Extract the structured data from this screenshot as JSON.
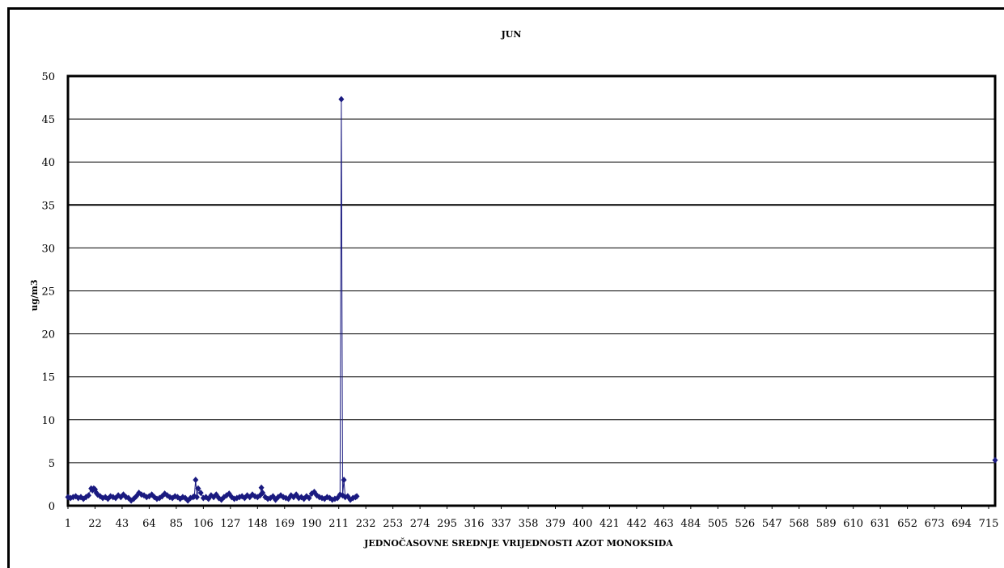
{
  "chart_data": {
    "type": "line",
    "title": "JUN",
    "xlabel": "JEDNOČASOVNE SREDNJE VRIJEDNOSTI AZOT MONOKSIDA",
    "ylabel": "ug/m3",
    "ylim": [
      0,
      50
    ],
    "yticks": [
      0,
      5,
      10,
      15,
      20,
      25,
      30,
      35,
      40,
      45,
      50
    ],
    "xlim": [
      1,
      720
    ],
    "xticks": [
      1,
      22,
      43,
      64,
      85,
      106,
      127,
      148,
      169,
      190,
      211,
      232,
      253,
      274,
      295,
      316,
      337,
      358,
      379,
      400,
      421,
      442,
      463,
      484,
      505,
      526,
      547,
      568,
      589,
      610,
      631,
      652,
      673,
      694,
      715
    ],
    "grid": true,
    "legend": "none",
    "series_color": "#1a1a80",
    "series": [
      {
        "x": [
          1,
          3,
          5,
          7,
          9,
          11,
          13,
          15,
          17,
          19,
          20,
          21,
          22,
          23,
          24,
          26,
          28,
          30,
          32,
          34,
          36,
          38,
          40,
          42,
          44,
          46,
          48,
          50,
          52,
          54,
          56,
          58,
          60,
          62,
          64,
          66,
          68,
          70,
          72,
          74,
          76,
          78,
          80,
          82,
          84,
          86,
          88,
          90,
          92,
          94,
          96,
          98,
          99,
          100,
          101,
          102,
          104,
          106,
          108,
          110,
          112,
          114,
          116,
          118,
          120,
          122,
          124,
          126,
          128,
          130,
          132,
          134,
          136,
          138,
          140,
          142,
          144,
          146,
          148,
          150,
          151,
          152,
          154,
          156,
          158,
          160,
          162,
          164,
          166,
          168,
          170,
          172,
          174,
          176,
          178,
          180,
          182,
          184,
          186,
          188,
          190,
          192,
          194,
          196,
          198,
          200,
          202,
          204,
          206,
          208,
          210,
          212,
          213,
          214,
          215,
          216,
          218,
          220,
          222,
          224,
          225,
          720
        ],
        "y": [
          1.0,
          0.9,
          1.0,
          1.1,
          0.9,
          1.0,
          0.8,
          1.0,
          1.2,
          2.0,
          1.8,
          2.0,
          1.9,
          1.5,
          1.3,
          1.1,
          0.9,
          1.0,
          0.8,
          1.1,
          1.0,
          0.9,
          1.2,
          1.0,
          1.3,
          1.0,
          0.9,
          0.6,
          0.8,
          1.1,
          1.5,
          1.3,
          1.2,
          1.0,
          1.1,
          1.3,
          1.0,
          0.8,
          0.9,
          1.1,
          1.4,
          1.2,
          1.0,
          0.9,
          1.1,
          1.0,
          0.8,
          1.0,
          0.9,
          0.6,
          0.9,
          1.0,
          1.1,
          3.0,
          1.0,
          2.0,
          1.5,
          0.9,
          1.0,
          0.8,
          1.2,
          1.0,
          1.3,
          0.9,
          0.7,
          1.0,
          1.2,
          1.4,
          1.0,
          0.8,
          0.9,
          1.0,
          1.1,
          0.9,
          1.2,
          1.0,
          1.3,
          1.1,
          1.0,
          1.2,
          2.1,
          1.5,
          1.0,
          0.8,
          0.9,
          1.1,
          0.7,
          1.0,
          1.2,
          1.0,
          0.9,
          0.8,
          1.2,
          1.0,
          1.3,
          0.9,
          1.0,
          0.8,
          1.1,
          0.9,
          1.4,
          1.6,
          1.2,
          1.0,
          0.9,
          0.8,
          1.0,
          0.9,
          0.7,
          0.8,
          0.9,
          1.3,
          47.3,
          1.2,
          3.0,
          1.0,
          1.1,
          0.7,
          0.9,
          1.0,
          1.1,
          5.3
        ]
      }
    ]
  }
}
